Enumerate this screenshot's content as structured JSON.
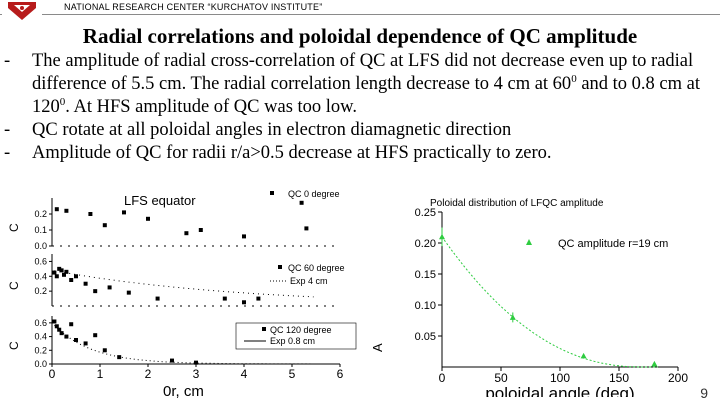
{
  "header": {
    "institute": "NATIONAL RESEARCH CENTER “KURCHATOV INSTITUTE”",
    "logo_icon": "kurchatov-logo-icon",
    "brand_color": "#b71c1c"
  },
  "slide": {
    "title": "Radial correlations and poloidal dependence of QC amplitude",
    "bullets": [
      {
        "dash": "-",
        "text": "The amplitude of radial cross-correlation of QC at LFS did not decrease even up to radial difference of 5.5 cm. The radial correlation length decrease to 4 cm at 60",
        "sup": "0",
        "text2": " and to 0.8 cm at 120",
        "sup2": "0",
        "text3": ". At HFS amplitude of QC was too low."
      },
      {
        "dash": "-",
        "text": "QC rotate at all poloidal angles in electron diamagnetic direction"
      },
      {
        "dash": "-",
        "text": "Amplitude of QC for radii r/a>0.5 decrease at HFS practically to zero."
      }
    ],
    "page_number": "9"
  },
  "chart_data": [
    {
      "type": "scatter",
      "title": "",
      "panel_label": "LFS equator",
      "series": [
        {
          "name": "QC 0 degree",
          "x": [
            0.1,
            0.3,
            0.8,
            1.1,
            1.5,
            2.0,
            2.8,
            3.1,
            4.0,
            5.2,
            5.3
          ],
          "y": [
            0.23,
            0.22,
            0.2,
            0.13,
            0.21,
            0.17,
            0.08,
            0.1,
            0.06,
            0.27,
            0.11
          ]
        }
      ],
      "y_ticks": [
        "0.2",
        "0.1",
        "0.0"
      ],
      "xlim": [
        0,
        6
      ]
    },
    {
      "type": "scatter",
      "series": [
        {
          "name": "QC 60 degree",
          "x": [
            0.05,
            0.1,
            0.15,
            0.2,
            0.25,
            0.3,
            0.4,
            0.5,
            0.7,
            0.9,
            1.2,
            1.6,
            2.2,
            3.6,
            4.0,
            4.3
          ],
          "y": [
            0.45,
            0.4,
            0.5,
            0.48,
            0.42,
            0.46,
            0.35,
            0.4,
            0.3,
            0.2,
            0.25,
            0.18,
            0.1,
            0.1,
            0.05,
            0.1
          ]
        },
        {
          "name": "Exp 4 cm"
        }
      ],
      "y_ticks": [
        "0.6",
        "0.4",
        "0.2"
      ]
    },
    {
      "type": "scatter",
      "series": [
        {
          "name": "QC 120 degree",
          "x": [
            0.05,
            0.1,
            0.15,
            0.2,
            0.3,
            0.4,
            0.5,
            0.7,
            0.9,
            1.1,
            1.4,
            2.5,
            3.0
          ],
          "y": [
            0.62,
            0.55,
            0.5,
            0.45,
            0.4,
            0.58,
            0.35,
            0.3,
            0.42,
            0.2,
            0.1,
            0.05,
            0.02
          ]
        },
        {
          "name": "Exp 0.8 cm"
        }
      ],
      "y_ticks": [
        "0.6",
        "0.4",
        "0.2",
        "0.0"
      ],
      "x_ticks": [
        "0",
        "1",
        "2",
        "3",
        "4",
        "5",
        "6"
      ],
      "xlabel": "0r, cm"
    },
    {
      "type": "scatter",
      "title": "Poloidal distribution of LFQC amplitude",
      "xlabel": "poloidal angle (deg)",
      "ylabel": "",
      "xlim": [
        0,
        200
      ],
      "ylim": [
        0,
        0.25
      ],
      "x_ticks": [
        "0",
        "50",
        "100",
        "150",
        "200"
      ],
      "y_ticks": [
        "0.00",
        "0.05",
        "0.10",
        "0.15",
        "0.20",
        "0.25"
      ],
      "series": [
        {
          "name": "QC amplitude r=19 cm",
          "x": [
            0,
            60,
            120,
            180
          ],
          "y": [
            0.21,
            0.08,
            0.018,
            0.005
          ],
          "err": [
            0.015,
            0.008,
            0.003,
            0.002
          ],
          "color": "#2ecc40"
        }
      ]
    }
  ]
}
